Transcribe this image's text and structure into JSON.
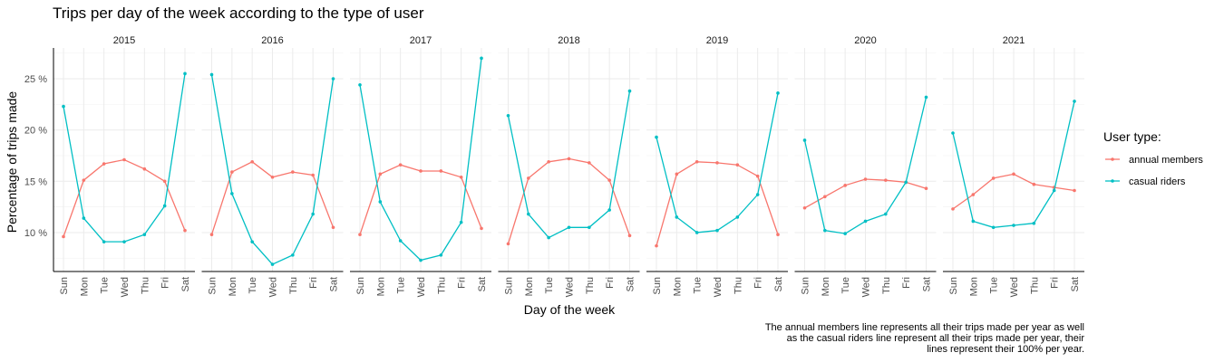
{
  "chart_data": {
    "type": "line",
    "title": "Trips per day of the week according to the type of user",
    "xlabel": "Day of the week",
    "ylabel": "Percentage of trips made",
    "categories": [
      "Sun",
      "Mon",
      "Tue",
      "Wed",
      "Thu",
      "Fri",
      "Sat"
    ],
    "y_ticks": [
      10,
      15,
      20,
      25
    ],
    "y_tick_labels": [
      "10 %",
      "15 %",
      "20 %",
      "25 %"
    ],
    "ylim": [
      6.2,
      28.0
    ],
    "grid": true,
    "legend_title": "User type:",
    "legend_position": "right",
    "colors": {
      "annual members": "#F8766D",
      "casual riders": "#00BFC4"
    },
    "panels": [
      {
        "year": "2015",
        "series": [
          {
            "name": "annual members",
            "values": [
              9.6,
              15.1,
              16.7,
              17.1,
              16.2,
              15.0,
              10.2
            ]
          },
          {
            "name": "casual riders",
            "values": [
              22.3,
              11.4,
              9.1,
              9.1,
              9.8,
              12.6,
              25.5
            ]
          }
        ]
      },
      {
        "year": "2016",
        "series": [
          {
            "name": "annual members",
            "values": [
              9.8,
              15.9,
              16.9,
              15.4,
              15.9,
              15.6,
              10.5
            ]
          },
          {
            "name": "casual riders",
            "values": [
              25.4,
              13.8,
              9.1,
              6.9,
              7.8,
              11.8,
              25.0
            ]
          }
        ]
      },
      {
        "year": "2017",
        "series": [
          {
            "name": "annual members",
            "values": [
              9.8,
              15.7,
              16.6,
              16.0,
              16.0,
              15.4,
              10.4
            ]
          },
          {
            "name": "casual riders",
            "values": [
              24.4,
              13.0,
              9.2,
              7.3,
              7.8,
              11.0,
              27.0
            ]
          }
        ]
      },
      {
        "year": "2018",
        "series": [
          {
            "name": "annual members",
            "values": [
              8.9,
              15.3,
              16.9,
              17.2,
              16.8,
              15.1,
              9.7
            ]
          },
          {
            "name": "casual riders",
            "values": [
              21.4,
              11.8,
              9.5,
              10.5,
              10.5,
              12.2,
              23.8
            ]
          }
        ]
      },
      {
        "year": "2019",
        "series": [
          {
            "name": "annual members",
            "values": [
              8.7,
              15.7,
              16.9,
              16.8,
              16.6,
              15.5,
              9.8
            ]
          },
          {
            "name": "casual riders",
            "values": [
              19.3,
              11.5,
              10.0,
              10.2,
              11.5,
              13.7,
              23.6
            ]
          }
        ]
      },
      {
        "year": "2020",
        "series": [
          {
            "name": "annual members",
            "values": [
              12.4,
              13.5,
              14.6,
              15.2,
              15.1,
              14.9,
              14.3
            ]
          },
          {
            "name": "casual riders",
            "values": [
              19.0,
              10.2,
              9.9,
              11.1,
              11.8,
              14.9,
              23.2
            ]
          }
        ]
      },
      {
        "year": "2021",
        "series": [
          {
            "name": "annual members",
            "values": [
              12.3,
              13.7,
              15.3,
              15.7,
              14.7,
              14.4,
              14.1
            ]
          },
          {
            "name": "casual riders",
            "values": [
              19.7,
              11.1,
              10.5,
              10.7,
              10.9,
              14.1,
              22.8
            ]
          }
        ]
      }
    ],
    "caption_lines": [
      "The annual members line represents all their trips made per year as well",
      "as the casual riders line represent all their trips made per year, their",
      "lines represent their 100% per year."
    ]
  }
}
